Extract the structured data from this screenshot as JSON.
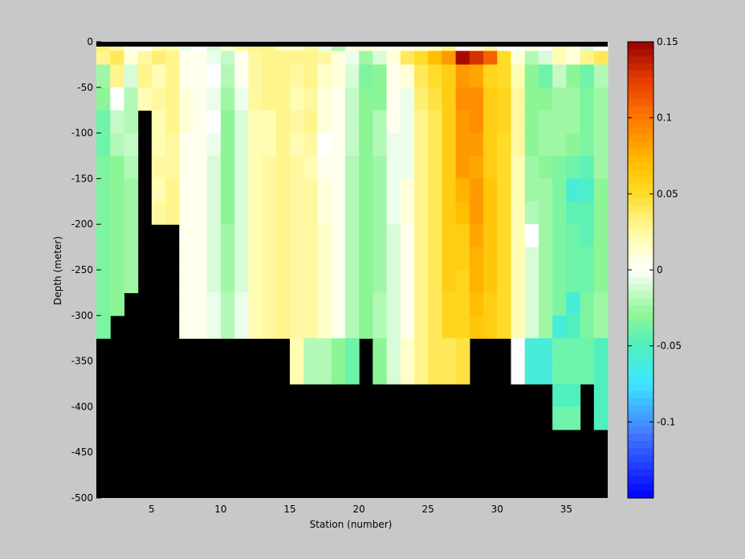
{
  "chart_data": {
    "type": "heatmap",
    "xlabel": "Station (number)",
    "ylabel": "Depth (meter)",
    "xlim": [
      1,
      38
    ],
    "ylim": [
      -500,
      0
    ],
    "x_ticks": [
      5,
      10,
      15,
      20,
      25,
      30,
      35
    ],
    "y_ticks": [
      0,
      -50,
      -100,
      -150,
      -200,
      -250,
      -300,
      -350,
      -400,
      -450,
      -500
    ],
    "colorbar": {
      "range": [
        -0.15,
        0.15
      ],
      "colormap": "jet-like diverging: blue-cyan-green-white-yellow-orange-darkred",
      "ticks": [
        0.15,
        0.1,
        0.05,
        0,
        -0.05,
        -0.1
      ]
    },
    "mask_color": "#000000",
    "depth_levels": [
      0,
      -10,
      -25,
      -50,
      -75,
      -100,
      -125,
      -150,
      -175,
      -200,
      -225,
      -250,
      -275,
      -300,
      -325,
      -350,
      -375,
      -400
    ],
    "stations": [
      1,
      2,
      3,
      4,
      5,
      6,
      7,
      8,
      9,
      10,
      11,
      12,
      13,
      14,
      15,
      16,
      17,
      18,
      19,
      20,
      21,
      22,
      23,
      24,
      25,
      26,
      27,
      28,
      29,
      30,
      31,
      32,
      33,
      34,
      35,
      36,
      37
    ],
    "values": [
      [
        0.035,
        0.025,
        0.005,
        0.0,
        0.02,
        0.02,
        -0.005,
        0.0,
        -0.01,
        0.01,
        0.025,
        0.03,
        0.03,
        0.015,
        0.015,
        0.025,
        -0.005,
        -0.02,
        0.01,
        0.01,
        0.005,
        0.005,
        0.005,
        0.01,
        0.015,
        0.03,
        0.0,
        0.01,
        0.025,
        0.0,
        0.0,
        0.01,
        0.0,
        0.02,
        0.01,
        -0.01,
        0.0
      ],
      [
        0.03,
        0.04,
        0.01,
        0.025,
        0.035,
        0.03,
        0.005,
        0.005,
        -0.005,
        -0.015,
        0.005,
        0.025,
        0.03,
        0.03,
        0.03,
        0.03,
        0.025,
        0.01,
        -0.005,
        -0.025,
        -0.01,
        0.01,
        0.04,
        0.05,
        0.07,
        0.085,
        0.145,
        0.13,
        0.11,
        0.05,
        0.01,
        -0.02,
        -0.01,
        0.02,
        0.01,
        0.03,
        0.04
      ],
      [
        -0.025,
        0.03,
        -0.01,
        0.03,
        0.02,
        0.03,
        0.005,
        0.005,
        0.0,
        -0.02,
        0.005,
        0.025,
        0.03,
        0.03,
        0.025,
        0.03,
        0.015,
        0.01,
        -0.01,
        -0.035,
        -0.03,
        0.005,
        0.01,
        0.04,
        0.05,
        0.06,
        0.085,
        0.08,
        0.055,
        0.05,
        0.02,
        -0.03,
        -0.04,
        -0.015,
        -0.03,
        -0.04,
        -0.02
      ],
      [
        -0.03,
        0.0,
        -0.02,
        0.02,
        0.025,
        0.03,
        0.01,
        0.005,
        -0.005,
        -0.025,
        -0.005,
        0.025,
        0.03,
        0.03,
        0.02,
        0.025,
        0.01,
        0.005,
        -0.015,
        -0.03,
        -0.03,
        0.005,
        -0.005,
        0.035,
        0.045,
        0.06,
        0.09,
        0.09,
        0.06,
        0.055,
        0.025,
        -0.03,
        -0.03,
        -0.025,
        -0.025,
        -0.035,
        -0.025
      ],
      [
        -0.04,
        -0.015,
        -0.02,
        null,
        0.02,
        0.03,
        0.01,
        0.005,
        0.0,
        -0.03,
        -0.01,
        0.02,
        0.02,
        0.03,
        0.025,
        0.03,
        0.01,
        0.005,
        -0.015,
        -0.03,
        -0.02,
        0.005,
        -0.005,
        0.03,
        0.04,
        0.06,
        0.085,
        0.09,
        0.06,
        0.055,
        0.025,
        -0.03,
        -0.025,
        -0.025,
        -0.025,
        -0.035,
        -0.025
      ],
      [
        -0.04,
        -0.02,
        -0.015,
        null,
        0.02,
        0.025,
        0.005,
        0.005,
        -0.005,
        -0.03,
        -0.01,
        0.02,
        0.02,
        0.03,
        0.02,
        0.025,
        0.0,
        0.005,
        -0.015,
        -0.03,
        -0.02,
        -0.005,
        -0.005,
        0.03,
        0.04,
        0.06,
        0.085,
        0.085,
        0.06,
        0.05,
        0.025,
        -0.03,
        -0.025,
        -0.025,
        -0.03,
        -0.035,
        -0.025
      ],
      [
        -0.035,
        -0.03,
        -0.02,
        null,
        0.025,
        0.025,
        0.005,
        0.005,
        -0.01,
        -0.03,
        -0.01,
        0.02,
        0.025,
        0.03,
        0.025,
        0.02,
        0.005,
        0.005,
        -0.02,
        -0.03,
        -0.025,
        -0.005,
        -0.005,
        0.03,
        0.04,
        0.06,
        0.085,
        0.08,
        0.06,
        0.05,
        0.02,
        -0.025,
        -0.03,
        -0.035,
        -0.04,
        -0.045,
        -0.025
      ],
      [
        -0.035,
        -0.03,
        -0.025,
        null,
        0.02,
        0.03,
        0.005,
        0.005,
        -0.01,
        -0.03,
        -0.01,
        0.02,
        0.025,
        0.03,
        0.025,
        0.025,
        0.01,
        0.005,
        -0.02,
        -0.03,
        -0.025,
        -0.005,
        0.01,
        0.03,
        0.04,
        0.06,
        0.075,
        0.085,
        0.065,
        0.05,
        0.02,
        -0.025,
        -0.025,
        -0.035,
        -0.06,
        -0.055,
        -0.03
      ],
      [
        -0.035,
        -0.03,
        -0.025,
        null,
        0.025,
        0.03,
        0.005,
        0.005,
        -0.01,
        -0.03,
        -0.01,
        0.02,
        0.025,
        0.03,
        0.025,
        0.025,
        0.01,
        0.005,
        -0.02,
        -0.03,
        -0.025,
        -0.005,
        0.01,
        0.03,
        0.04,
        0.06,
        0.07,
        0.085,
        0.065,
        0.05,
        0.02,
        -0.02,
        -0.025,
        -0.035,
        -0.045,
        -0.045,
        -0.03
      ],
      [
        -0.035,
        -0.03,
        -0.025,
        null,
        null,
        null,
        0.005,
        0.005,
        -0.01,
        -0.025,
        -0.01,
        0.02,
        0.025,
        0.03,
        0.025,
        0.025,
        0.015,
        0.005,
        -0.02,
        -0.03,
        -0.025,
        -0.01,
        0.005,
        0.03,
        0.04,
        0.06,
        0.06,
        0.08,
        0.065,
        0.05,
        0.02,
        0.0,
        -0.025,
        -0.035,
        -0.04,
        -0.045,
        -0.03
      ],
      [
        -0.035,
        -0.03,
        -0.025,
        null,
        null,
        null,
        0.005,
        0.005,
        -0.01,
        -0.025,
        -0.01,
        0.02,
        0.025,
        0.03,
        0.025,
        0.025,
        0.015,
        0.005,
        -0.02,
        -0.03,
        -0.025,
        -0.01,
        0.005,
        0.03,
        0.04,
        0.06,
        0.06,
        0.075,
        0.065,
        0.05,
        0.02,
        -0.01,
        -0.025,
        -0.035,
        -0.04,
        -0.04,
        -0.03
      ],
      [
        -0.035,
        -0.03,
        -0.025,
        null,
        null,
        null,
        0.005,
        0.005,
        -0.01,
        -0.025,
        -0.01,
        0.02,
        0.025,
        0.03,
        0.025,
        0.025,
        0.015,
        0.005,
        -0.02,
        -0.03,
        -0.025,
        -0.01,
        0.005,
        0.03,
        0.04,
        0.06,
        0.055,
        0.075,
        0.065,
        0.05,
        0.02,
        -0.01,
        -0.025,
        -0.035,
        -0.04,
        -0.04,
        -0.03
      ],
      [
        -0.035,
        -0.03,
        null,
        null,
        null,
        null,
        0.005,
        0.005,
        -0.005,
        -0.02,
        -0.005,
        0.02,
        0.025,
        0.03,
        0.025,
        0.025,
        0.015,
        0.005,
        -0.02,
        -0.03,
        -0.02,
        -0.01,
        0.005,
        0.03,
        0.04,
        0.055,
        0.055,
        0.07,
        0.06,
        0.05,
        0.02,
        -0.01,
        -0.025,
        -0.035,
        -0.06,
        -0.035,
        -0.025
      ],
      [
        -0.035,
        null,
        null,
        null,
        null,
        null,
        0.005,
        0.005,
        -0.005,
        -0.02,
        -0.005,
        0.02,
        0.025,
        0.03,
        0.025,
        0.025,
        0.015,
        0.005,
        -0.02,
        -0.03,
        -0.02,
        -0.01,
        0.005,
        0.03,
        0.04,
        0.055,
        0.055,
        0.065,
        0.06,
        0.05,
        0.02,
        -0.01,
        -0.025,
        -0.06,
        -0.05,
        -0.035,
        -0.025
      ],
      [
        null,
        null,
        null,
        null,
        null,
        null,
        null,
        null,
        null,
        null,
        null,
        null,
        null,
        null,
        0.02,
        -0.02,
        -0.02,
        -0.03,
        -0.04,
        null,
        -0.03,
        -0.01,
        0.015,
        0.03,
        0.04,
        0.04,
        0.045,
        null,
        null,
        null,
        0.0,
        -0.06,
        -0.06,
        -0.04,
        -0.04,
        -0.04,
        -0.05
      ],
      [
        null,
        null,
        null,
        null,
        null,
        null,
        null,
        null,
        null,
        null,
        null,
        null,
        null,
        null,
        0.02,
        -0.02,
        -0.02,
        -0.03,
        -0.04,
        null,
        -0.03,
        -0.01,
        0.015,
        0.03,
        0.04,
        0.04,
        0.045,
        null,
        null,
        null,
        0.0,
        -0.06,
        -0.06,
        -0.04,
        -0.04,
        -0.04,
        -0.05
      ],
      [
        null,
        null,
        null,
        null,
        null,
        null,
        null,
        null,
        null,
        null,
        null,
        null,
        null,
        null,
        null,
        null,
        null,
        null,
        null,
        null,
        null,
        null,
        null,
        null,
        null,
        null,
        null,
        null,
        null,
        null,
        null,
        null,
        null,
        -0.05,
        -0.05,
        null,
        -0.05
      ],
      [
        null,
        null,
        null,
        null,
        null,
        null,
        null,
        null,
        null,
        null,
        null,
        null,
        null,
        null,
        null,
        null,
        null,
        null,
        null,
        null,
        null,
        null,
        null,
        null,
        null,
        null,
        null,
        null,
        null,
        null,
        null,
        null,
        null,
        -0.04,
        -0.04,
        null,
        -0.05
      ]
    ]
  }
}
